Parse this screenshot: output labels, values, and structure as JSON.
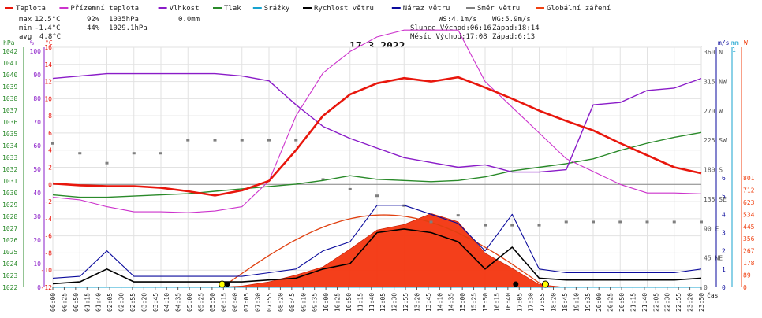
{
  "chart_data": {
    "type": "line",
    "title": "17.3.2022",
    "legend": [
      {
        "name": "Teplota",
        "color": "#e8160c"
      },
      {
        "name": "Přízemní teplota",
        "color": "#cc33cc"
      },
      {
        "name": "Vlhkost",
        "color": "#8a1cc8"
      },
      {
        "name": "Tlak",
        "color": "#2a8a2a"
      },
      {
        "name": "Srážky",
        "color": "#17a3cf"
      },
      {
        "name": "Rychlost větru",
        "color": "#000000"
      },
      {
        "name": "Náraz větru",
        "color": "#0a0a9c"
      },
      {
        "name": "Směr větru",
        "color": "#7f7f7f"
      },
      {
        "name": "Globální záření",
        "color": "#f04010"
      }
    ],
    "stats": {
      "max_label": "max",
      "max_temp": "12.5°C",
      "max_hum": "92%",
      "max_press": "1035hPa",
      "rain": "0.0mm",
      "min_label": "min",
      "min_temp": "-1.4°C",
      "min_hum": "44%",
      "min_press": "1029.1hPa",
      "avg_label": "avg",
      "avg_temp": "4.8°C",
      "ws": "WS:4.1m/s",
      "wg": "WG:5.9m/s",
      "sun": "Slunce Východ:06:16",
      "sun_set": "Západ:18:14",
      "moon": "Měsíc  Východ:17:08",
      "moon_set": "Západ:6:13"
    },
    "axes": {
      "hpa_label": "hPa",
      "pct_label": "%",
      "c_label": "°C",
      "ms_label": "m/s",
      "mm_label": "mm",
      "w_label": "W",
      "time_label": "čas",
      "hpa_ticks": [
        "1042",
        "1041",
        "1040",
        "1039",
        "1038",
        "1037",
        "1036",
        "1035",
        "1034",
        "1033",
        "1032",
        "1031",
        "1030",
        "1029",
        "1028",
        "1027",
        "1026",
        "1025",
        "1024",
        "1023",
        "1022"
      ],
      "pct_ticks": [
        "100",
        "90",
        "80",
        "70",
        "60",
        "50",
        "40",
        "30",
        "20",
        "10",
        "0"
      ],
      "c_ticks": [
        "16",
        "14",
        "12",
        "10",
        "8",
        "6",
        "4",
        "2",
        "0",
        "-2",
        "-4",
        "-6",
        "-8",
        "-10",
        "-12"
      ],
      "dir_ticks": [
        "360 N",
        "315 NW",
        "270 W",
        "225 SW",
        "180 S",
        "135 SE",
        "90 E",
        "45 NE",
        "0"
      ],
      "ms_ticks": [
        "6",
        "5",
        "4",
        "3",
        "2",
        "1",
        "0"
      ],
      "w_ticks": [
        "801",
        "712",
        "623",
        "534",
        "445",
        "356",
        "267",
        "178",
        "89",
        "0"
      ],
      "mm_top": "1",
      "time_ticks": [
        "00:00",
        "00:25",
        "00:50",
        "01:15",
        "01:40",
        "02:05",
        "02:30",
        "02:55",
        "03:20",
        "03:45",
        "04:10",
        "04:35",
        "05:00",
        "05:25",
        "05:50",
        "06:15",
        "06:40",
        "07:05",
        "07:30",
        "07:55",
        "08:20",
        "08:45",
        "09:10",
        "09:35",
        "10:00",
        "10:25",
        "10:50",
        "11:15",
        "11:40",
        "12:05",
        "12:30",
        "12:55",
        "13:20",
        "13:45",
        "14:10",
        "14:35",
        "15:00",
        "15:25",
        "15:50",
        "16:15",
        "16:40",
        "17:05",
        "17:30",
        "17:55",
        "18:20",
        "18:45",
        "19:10",
        "19:35",
        "20:00",
        "20:25",
        "20:50",
        "21:15",
        "21:40",
        "22:05",
        "22:30",
        "22:55",
        "23:20",
        "23:50"
      ]
    },
    "x_hours": [
      0,
      1,
      2,
      3,
      4,
      5,
      6,
      7,
      8,
      9,
      10,
      11,
      12,
      13,
      14,
      15,
      16,
      17,
      18,
      19,
      20,
      21,
      22,
      23,
      24
    ],
    "series": [
      {
        "name": "Teplota",
        "unit": "°C",
        "values": [
          0.1,
          -0.1,
          -0.2,
          -0.2,
          -0.4,
          -0.8,
          -1.3,
          -0.7,
          0.4,
          4.0,
          8.0,
          10.5,
          11.8,
          12.4,
          12.0,
          12.5,
          11.3,
          10.0,
          8.6,
          7.4,
          6.3,
          4.8,
          3.4,
          2.0,
          1.3
        ]
      },
      {
        "name": "Přízemní teplota",
        "unit": "°C",
        "values": [
          -1.5,
          -1.8,
          -2.6,
          -3.2,
          -3.2,
          -3.3,
          -3.1,
          -2.6,
          0.4,
          8.0,
          13.0,
          15.5,
          17.2,
          18.0,
          18.0,
          18.0,
          12.0,
          9.0,
          6.0,
          3.0,
          1.5,
          0.0,
          -1.0,
          -1.0,
          -1.1
        ]
      },
      {
        "name": "Vlhkost",
        "unit": "%",
        "values": [
          87,
          88,
          89,
          89,
          89,
          89,
          89,
          88,
          86,
          76,
          67,
          62,
          58,
          54,
          52,
          50,
          51,
          48,
          48,
          49,
          76,
          77,
          82,
          83,
          87
        ]
      },
      {
        "name": "Tlak",
        "unit": "hPa",
        "values": [
          1029.7,
          1029.5,
          1029.5,
          1029.6,
          1029.7,
          1029.8,
          1030.0,
          1030.2,
          1030.4,
          1030.6,
          1030.9,
          1031.3,
          1031.0,
          1030.9,
          1030.8,
          1030.9,
          1031.2,
          1031.7,
          1032.0,
          1032.3,
          1032.7,
          1033.4,
          1034.0,
          1034.5,
          1034.9
        ]
      },
      {
        "name": "Srážky",
        "unit": "mm",
        "values": [
          0,
          0,
          0,
          0,
          0,
          0,
          0,
          0,
          0,
          0,
          0,
          0,
          0,
          0,
          0,
          0,
          0,
          0,
          0,
          0,
          0,
          0,
          0,
          0,
          0
        ]
      },
      {
        "name": "Rychlost větru",
        "unit": "m/s",
        "values": [
          0.2,
          0.3,
          1.0,
          0.3,
          0.3,
          0.3,
          0.3,
          0.3,
          0.4,
          0.5,
          1.0,
          1.3,
          3.0,
          3.2,
          3.0,
          2.5,
          1.0,
          2.2,
          0.5,
          0.4,
          0.4,
          0.4,
          0.4,
          0.4,
          0.5
        ]
      },
      {
        "name": "Náraz větru",
        "unit": "m/s",
        "values": [
          0.5,
          0.6,
          2.0,
          0.6,
          0.6,
          0.6,
          0.6,
          0.6,
          0.8,
          1.0,
          2.0,
          2.5,
          4.5,
          4.5,
          4.0,
          3.5,
          2.0,
          4.0,
          1.0,
          0.8,
          0.8,
          0.8,
          0.8,
          0.8,
          1.0
        ]
      },
      {
        "name": "Směr větru",
        "unit": "°",
        "values": [
          220,
          205,
          190,
          205,
          205,
          225,
          225,
          225,
          225,
          225,
          165,
          150,
          140,
          125,
          100,
          110,
          95,
          95,
          95,
          100,
          100,
          100,
          100,
          100,
          100
        ]
      },
      {
        "name": "Globální záření",
        "unit": "W",
        "values": [
          0,
          0,
          0,
          0,
          0,
          0,
          0,
          10,
          40,
          90,
          150,
          280,
          420,
          460,
          540,
          480,
          250,
          140,
          20,
          0,
          0,
          0,
          0,
          0,
          0
        ]
      }
    ],
    "clear_sky_radiation_peak_W": 530,
    "grid": true
  }
}
